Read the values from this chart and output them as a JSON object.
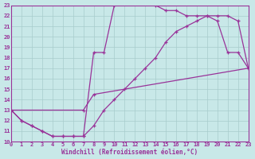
{
  "xlabel": "Windchill (Refroidissement éolien,°C)",
  "bg_color": "#c8e8e8",
  "grid_color": "#a8cccc",
  "line_color": "#993399",
  "xlim": [
    0,
    23
  ],
  "ylim": [
    10,
    23
  ],
  "xticks": [
    0,
    1,
    2,
    3,
    4,
    5,
    6,
    7,
    8,
    9,
    10,
    11,
    12,
    13,
    14,
    15,
    16,
    17,
    18,
    19,
    20,
    21,
    22,
    23
  ],
  "yticks": [
    10,
    11,
    12,
    13,
    14,
    15,
    16,
    17,
    18,
    19,
    20,
    21,
    22,
    23
  ],
  "line1_x": [
    0,
    1,
    2,
    3,
    4,
    5,
    6,
    7,
    8,
    9,
    10,
    11,
    12,
    13,
    14,
    15,
    16,
    17,
    18,
    19,
    20,
    21,
    22,
    23
  ],
  "line1_y": [
    13,
    12,
    11.5,
    11,
    10.5,
    10.5,
    10.5,
    10.5,
    18.5,
    18.5,
    23,
    23.2,
    23.5,
    23.5,
    23,
    22.5,
    22.5,
    22,
    22,
    22,
    21.5,
    18.5,
    18.5,
    17
  ],
  "line2_x": [
    0,
    1,
    2,
    3,
    4,
    5,
    6,
    7,
    8,
    9,
    10,
    11,
    12,
    13,
    14,
    15,
    16,
    17,
    18,
    19,
    20,
    21,
    22,
    23
  ],
  "line2_y": [
    13,
    12,
    11.5,
    11,
    10.5,
    10.5,
    10.5,
    10.5,
    11.5,
    13,
    14,
    15,
    16,
    17,
    18,
    19.5,
    20.5,
    21,
    21.5,
    22,
    22,
    22,
    21.5,
    17
  ],
  "line3_x": [
    0,
    7,
    8,
    23
  ],
  "line3_y": [
    13,
    13,
    14.5,
    17
  ],
  "lw": 0.9,
  "ms": 3.0
}
